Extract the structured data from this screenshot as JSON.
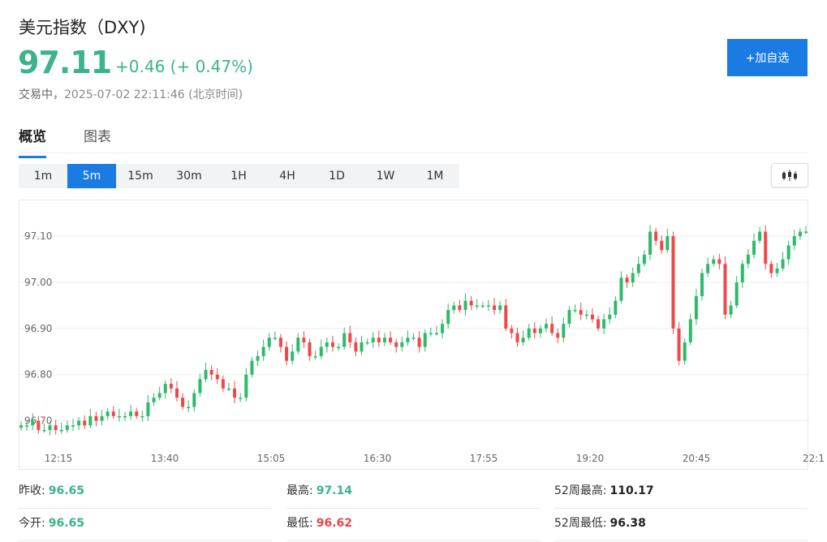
{
  "header": {
    "title": "美元指数（DXY)",
    "price": "97.11",
    "change": "+0.46 (+ 0.47%)",
    "status_prefix": "交易中，",
    "status_time": "2025-07-02 22:11:46 (北京时间)",
    "add_button": "+加自选"
  },
  "tabs": [
    {
      "label": "概览",
      "active": true
    },
    {
      "label": "图表",
      "active": false
    }
  ],
  "intervals": [
    {
      "label": "1m",
      "active": false
    },
    {
      "label": "5m",
      "active": true
    },
    {
      "label": "15m",
      "active": false
    },
    {
      "label": "30m",
      "active": false
    },
    {
      "label": "1H",
      "active": false
    },
    {
      "label": "4H",
      "active": false
    },
    {
      "label": "1D",
      "active": false
    },
    {
      "label": "1W",
      "active": false
    },
    {
      "label": "1M",
      "active": false
    }
  ],
  "chart_type_icon": "candlestick-icon",
  "colors": {
    "up": "#2dbb6a",
    "down": "#f04848",
    "accent": "#1a7be3",
    "positive_text": "#3cb38c"
  },
  "chart_data": {
    "type": "candlestick",
    "y_ticks": [
      "97.10",
      "97.00",
      "96.90",
      "96.80",
      "96.70"
    ],
    "x_ticks": [
      "12:15",
      "13:40",
      "15:05",
      "16:30",
      "17:55",
      "19:20",
      "20:45",
      "22:1"
    ],
    "ylim": [
      96.65,
      97.16
    ],
    "grid": true,
    "closes": [
      96.69,
      96.69,
      96.7,
      96.68,
      96.68,
      96.69,
      96.68,
      96.68,
      96.69,
      96.69,
      96.7,
      96.69,
      96.71,
      96.7,
      96.71,
      96.72,
      96.71,
      96.71,
      96.71,
      96.72,
      96.71,
      96.71,
      96.74,
      96.75,
      96.76,
      96.78,
      96.77,
      96.75,
      96.73,
      96.73,
      96.76,
      96.79,
      96.81,
      96.8,
      96.79,
      96.77,
      96.77,
      96.75,
      96.75,
      96.8,
      96.83,
      96.84,
      96.86,
      96.88,
      96.88,
      96.86,
      96.83,
      96.85,
      96.88,
      96.87,
      96.84,
      96.84,
      96.86,
      96.87,
      96.86,
      96.86,
      96.89,
      96.87,
      96.85,
      96.87,
      96.87,
      96.88,
      96.87,
      96.88,
      96.87,
      96.86,
      96.87,
      96.88,
      96.88,
      96.86,
      96.89,
      96.89,
      96.89,
      96.91,
      96.94,
      96.95,
      96.94,
      96.96,
      96.95,
      96.95,
      96.95,
      96.95,
      96.94,
      96.95,
      96.9,
      96.89,
      96.87,
      96.88,
      96.9,
      96.89,
      96.9,
      96.91,
      96.89,
      96.88,
      96.91,
      96.94,
      96.94,
      96.93,
      96.93,
      96.92,
      96.9,
      96.92,
      96.93,
      96.96,
      97.01,
      97.0,
      97.02,
      97.04,
      97.06,
      97.11,
      97.09,
      97.07,
      97.1,
      96.9,
      96.83,
      96.87,
      96.92,
      96.97,
      97.02,
      97.04,
      97.05,
      97.04,
      96.93,
      96.95,
      97.0,
      97.04,
      97.06,
      97.09,
      97.11,
      97.04,
      97.02,
      97.03,
      97.05,
      97.08,
      97.1,
      97.11,
      97.11
    ]
  },
  "stats": [
    [
      {
        "label": "昨收:",
        "value": "96.65",
        "color": "g"
      },
      {
        "label": "最高:",
        "value": "97.14",
        "color": "g"
      },
      {
        "label": "52周最高:",
        "value": "110.17",
        "color": "k"
      }
    ],
    [
      {
        "label": "今开:",
        "value": "96.65",
        "color": "g"
      },
      {
        "label": "最低:",
        "value": "96.62",
        "color": "r"
      },
      {
        "label": "52周最低:",
        "value": "96.38",
        "color": "k"
      }
    ]
  ]
}
